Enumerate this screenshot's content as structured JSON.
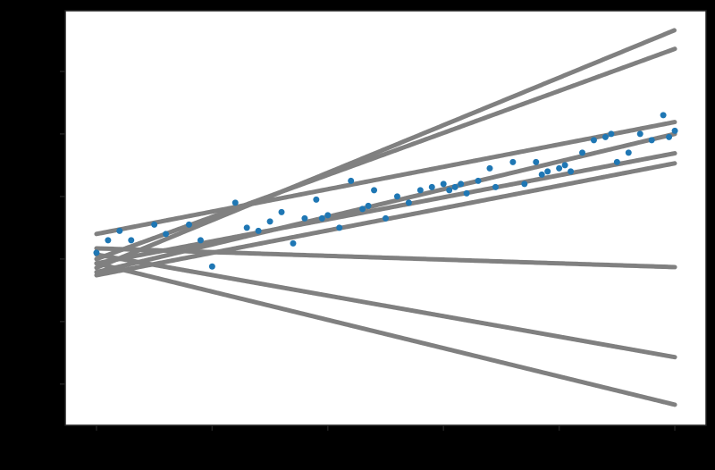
{
  "chart_data": {
    "type": "scatter",
    "x": [
      0,
      1,
      2,
      3,
      5,
      6,
      8,
      9,
      10,
      12,
      13,
      14,
      15,
      16,
      17,
      18,
      19,
      19.5,
      20,
      21,
      22,
      23,
      23.5,
      24,
      25,
      26,
      27,
      28,
      29,
      30,
      30.5,
      31,
      31.5,
      32,
      33,
      34,
      34.5,
      36,
      37,
      38,
      38.5,
      39,
      40,
      40.5,
      41,
      42,
      43,
      44,
      44.5,
      45,
      46,
      47,
      48,
      49,
      49.5,
      50
    ],
    "values": [
      0.1,
      0.3,
      0.45,
      0.3,
      0.55,
      0.4,
      0.55,
      0.3,
      -0.12,
      0.9,
      0.5,
      0.45,
      0.6,
      0.75,
      0.25,
      0.65,
      0.95,
      0.65,
      0.7,
      0.5,
      1.25,
      0.8,
      0.85,
      1.1,
      0.65,
      1.0,
      0.9,
      1.1,
      1.15,
      1.2,
      1.1,
      1.15,
      1.2,
      1.05,
      1.25,
      1.45,
      1.15,
      1.55,
      1.2,
      1.55,
      1.35,
      1.4,
      1.45,
      1.5,
      1.4,
      1.7,
      1.9,
      1.95,
      2.0,
      1.55,
      1.7,
      2.0,
      1.9,
      2.3,
      1.95,
      2.05
    ],
    "color": "#1f77b4",
    "lines": [
      {
        "x": [
          0,
          50
        ],
        "values": [
          -0.14,
          3.66
        ]
      },
      {
        "x": [
          0,
          50
        ],
        "values": [
          0,
          3.36
        ]
      },
      {
        "x": [
          0,
          50
        ],
        "values": [
          0.4,
          2.19
        ]
      },
      {
        "x": [
          0,
          50
        ],
        "values": [
          -0.21,
          2.0
        ]
      },
      {
        "x": [
          0,
          50
        ],
        "values": [
          -0.07,
          1.69
        ]
      },
      {
        "x": [
          0,
          50
        ],
        "values": [
          -0.26,
          1.53
        ]
      },
      {
        "x": [
          0,
          50
        ],
        "values": [
          0.17,
          -0.13
        ]
      },
      {
        "x": [
          0,
          50
        ],
        "values": [
          0.07,
          -1.57
        ]
      },
      {
        "x": [
          0,
          50
        ],
        "values": [
          -0.07,
          -2.33
        ]
      }
    ],
    "line_color": "#808080",
    "xlim": [
      -2.7,
      52.7
    ],
    "ylim": [
      -2.66,
      3.97
    ],
    "xticks": [
      0,
      10,
      20,
      30,
      40,
      50
    ],
    "yticks": [
      -2,
      -1,
      0,
      1,
      2,
      3
    ]
  }
}
